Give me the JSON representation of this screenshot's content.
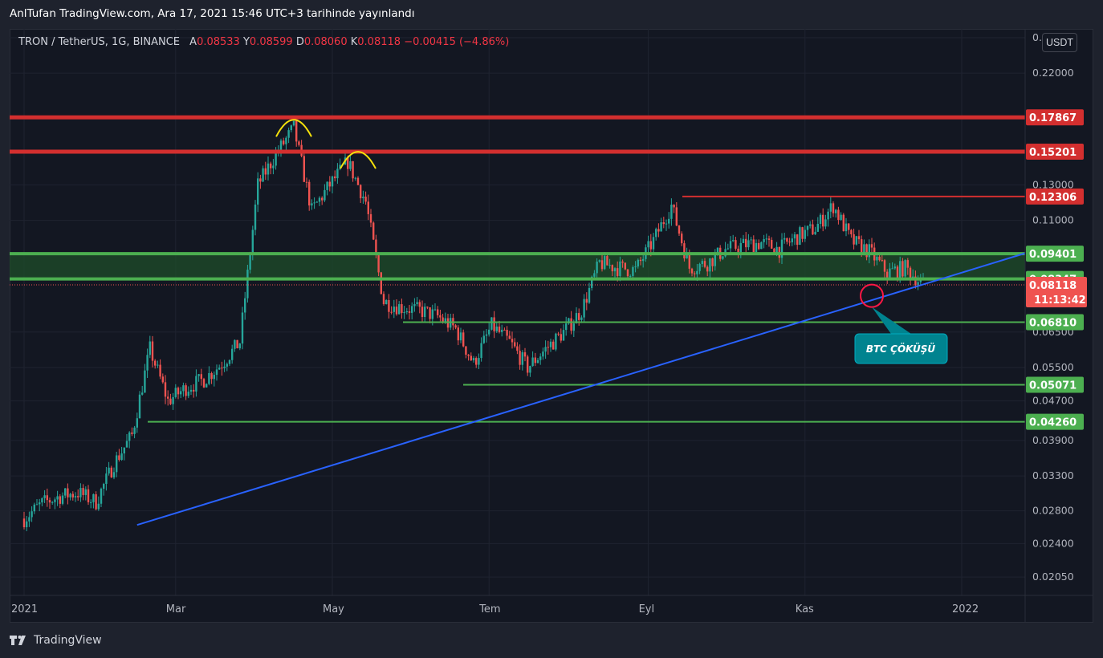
{
  "header": {
    "publish_text": "AnlTufan TradingView.com, Ara 17, 2021 15:46 UTC+3 tarihinde yayınlandı"
  },
  "legend": {
    "symbol": "TRON / TetherUS, 1G, BINANCE",
    "open_label": "A",
    "open": "0.08533",
    "high_label": "Y",
    "high": "0.08599",
    "low_label": "D",
    "low": "0.08060",
    "close_label": "K",
    "close": "0.08118",
    "change": "−0.00415 (−4.86%)"
  },
  "currency_badge": "USDT",
  "footer": {
    "brand": "TradingView"
  },
  "colors": {
    "background": "#131722",
    "up": "#26a69a",
    "down": "#ef5350",
    "resistance": "#d32f2f",
    "support": "#4caf50",
    "trendline": "#2962ff",
    "annotation_bg": "#00838f"
  },
  "chart_data": {
    "type": "candlestick",
    "y_scale": "log",
    "ylim": [
      0.0188,
      0.27
    ],
    "y_ticks": [
      "0.26000",
      "0.22000",
      "0.13000",
      "0.11000",
      "0.06500",
      "0.05500",
      "0.04700",
      "0.03900",
      "0.03300",
      "0.02800",
      "0.02400",
      "0.02050"
    ],
    "x_ticks": [
      "2021",
      "Mar",
      "May",
      "Tem",
      "Eyl",
      "Kas",
      "2022"
    ],
    "last_price": "0.08118",
    "countdown": "11:13:42",
    "price_levels": [
      {
        "value": "0.17867",
        "kind": "resistance"
      },
      {
        "value": "0.15201",
        "kind": "resistance"
      },
      {
        "value": "0.12306",
        "kind": "resistance"
      },
      {
        "value": "0.09401",
        "kind": "support"
      },
      {
        "value": "0.08347",
        "kind": "support"
      },
      {
        "value": "0.06810",
        "kind": "support"
      },
      {
        "value": "0.05071",
        "kind": "support"
      },
      {
        "value": "0.04260",
        "kind": "support"
      }
    ],
    "annotation": "BTC ÇÖKÜŞÜ",
    "series_close": [
      [
        "2021-01-01",
        0.027
      ],
      [
        "2021-01-08",
        0.029
      ],
      [
        "2021-01-15",
        0.03
      ],
      [
        "2021-01-22",
        0.0305
      ],
      [
        "2021-01-29",
        0.0292
      ],
      [
        "2021-02-05",
        0.035
      ],
      [
        "2021-02-12",
        0.04
      ],
      [
        "2021-02-19",
        0.06
      ],
      [
        "2021-02-26",
        0.047
      ],
      [
        "2021-03-05",
        0.05
      ],
      [
        "2021-03-12",
        0.052
      ],
      [
        "2021-03-19",
        0.056
      ],
      [
        "2021-03-26",
        0.062
      ],
      [
        "2021-04-02",
        0.13
      ],
      [
        "2021-04-09",
        0.15
      ],
      [
        "2021-04-16",
        0.17
      ],
      [
        "2021-04-23",
        0.115
      ],
      [
        "2021-04-30",
        0.13
      ],
      [
        "2021-05-07",
        0.145
      ],
      [
        "2021-05-14",
        0.12
      ],
      [
        "2021-05-21",
        0.075
      ],
      [
        "2021-05-28",
        0.073
      ],
      [
        "2021-06-04",
        0.072
      ],
      [
        "2021-06-11",
        0.07
      ],
      [
        "2021-06-18",
        0.066
      ],
      [
        "2021-06-25",
        0.056
      ],
      [
        "2021-07-02",
        0.067
      ],
      [
        "2021-07-09",
        0.062
      ],
      [
        "2021-07-16",
        0.055
      ],
      [
        "2021-07-23",
        0.06
      ],
      [
        "2021-07-30",
        0.065
      ],
      [
        "2021-08-06",
        0.072
      ],
      [
        "2021-08-13",
        0.09
      ],
      [
        "2021-08-20",
        0.088
      ],
      [
        "2021-08-27",
        0.087
      ],
      [
        "2021-09-03",
        0.1
      ],
      [
        "2021-09-10",
        0.118
      ],
      [
        "2021-09-17",
        0.088
      ],
      [
        "2021-09-24",
        0.09
      ],
      [
        "2021-10-01",
        0.096
      ],
      [
        "2021-10-08",
        0.098
      ],
      [
        "2021-10-15",
        0.099
      ],
      [
        "2021-10-22",
        0.096
      ],
      [
        "2021-10-29",
        0.102
      ],
      [
        "2021-11-05",
        0.106
      ],
      [
        "2021-11-12",
        0.118
      ],
      [
        "2021-11-19",
        0.1
      ],
      [
        "2021-11-26",
        0.095
      ],
      [
        "2021-12-03",
        0.086
      ],
      [
        "2021-12-10",
        0.088
      ],
      [
        "2021-12-17",
        0.0812
      ]
    ]
  }
}
